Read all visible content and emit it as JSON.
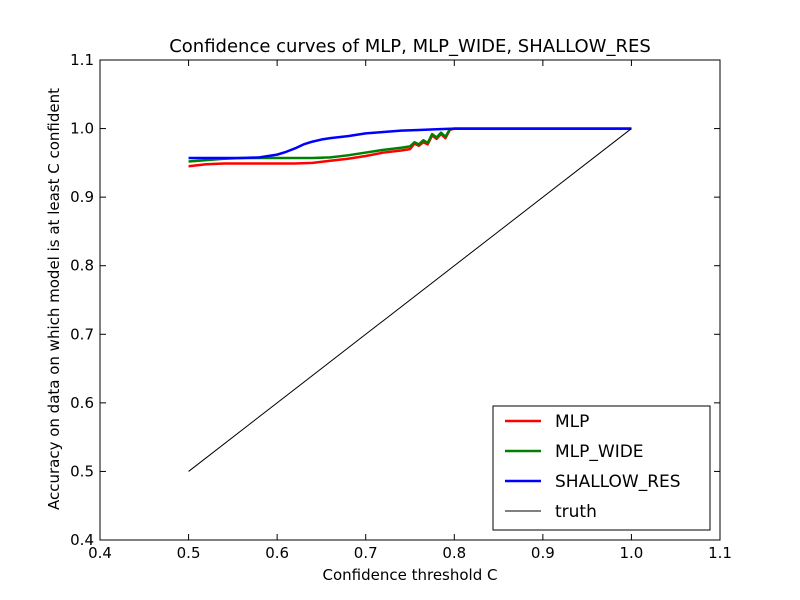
{
  "chart_data": {
    "type": "line",
    "title": "Confidence curves of MLP, MLP_WIDE, SHALLOW_RES",
    "xlabel": "Confidence threshold C",
    "ylabel": "Accuracy on data on which model is at least C confident",
    "xlim": [
      0.4,
      1.1
    ],
    "ylim": [
      0.4,
      1.1
    ],
    "xticks": [
      "0.4",
      "0.5",
      "0.6",
      "0.7",
      "0.8",
      "0.9",
      "1.0",
      "1.1"
    ],
    "yticks": [
      "0.4",
      "0.5",
      "0.6",
      "0.7",
      "0.8",
      "0.9",
      "1.0",
      "1.1"
    ],
    "grid": false,
    "legend_position": "bottom-right",
    "series": [
      {
        "name": "MLP",
        "color": "#ff0000",
        "x": [
          0.5,
          0.52,
          0.54,
          0.56,
          0.58,
          0.6,
          0.62,
          0.64,
          0.66,
          0.68,
          0.7,
          0.72,
          0.74,
          0.75,
          0.755,
          0.76,
          0.765,
          0.77,
          0.775,
          0.78,
          0.785,
          0.79,
          0.795,
          0.8,
          0.85,
          0.9,
          0.95,
          1.0
        ],
        "y": [
          0.945,
          0.948,
          0.949,
          0.949,
          0.949,
          0.949,
          0.949,
          0.95,
          0.953,
          0.956,
          0.96,
          0.965,
          0.968,
          0.97,
          0.978,
          0.975,
          0.98,
          0.977,
          0.99,
          0.985,
          0.992,
          0.986,
          0.998,
          1.0,
          1.0,
          1.0,
          1.0,
          1.0
        ]
      },
      {
        "name": "MLP_WIDE",
        "color": "#008000",
        "x": [
          0.5,
          0.52,
          0.54,
          0.56,
          0.58,
          0.6,
          0.62,
          0.64,
          0.66,
          0.68,
          0.7,
          0.72,
          0.74,
          0.75,
          0.755,
          0.76,
          0.765,
          0.77,
          0.775,
          0.78,
          0.785,
          0.79,
          0.795,
          0.8,
          0.85,
          0.9,
          0.95,
          1.0
        ],
        "y": [
          0.952,
          0.954,
          0.956,
          0.957,
          0.957,
          0.957,
          0.957,
          0.957,
          0.958,
          0.961,
          0.965,
          0.969,
          0.972,
          0.974,
          0.98,
          0.977,
          0.983,
          0.979,
          0.992,
          0.987,
          0.994,
          0.988,
          0.999,
          1.0,
          1.0,
          1.0,
          1.0,
          1.0
        ]
      },
      {
        "name": "SHALLOW_RES",
        "color": "#0000ff",
        "x": [
          0.5,
          0.52,
          0.54,
          0.56,
          0.58,
          0.6,
          0.61,
          0.62,
          0.63,
          0.64,
          0.65,
          0.66,
          0.68,
          0.7,
          0.72,
          0.74,
          0.76,
          0.78,
          0.8,
          0.85,
          0.9,
          0.95,
          1.0
        ],
        "y": [
          0.957,
          0.957,
          0.957,
          0.957,
          0.958,
          0.962,
          0.966,
          0.971,
          0.977,
          0.981,
          0.984,
          0.986,
          0.989,
          0.993,
          0.995,
          0.997,
          0.998,
          0.999,
          1.0,
          1.0,
          1.0,
          1.0,
          1.0
        ]
      },
      {
        "name": "truth",
        "color": "#000000",
        "x": [
          0.5,
          1.0
        ],
        "y": [
          0.5,
          1.0
        ]
      }
    ]
  }
}
